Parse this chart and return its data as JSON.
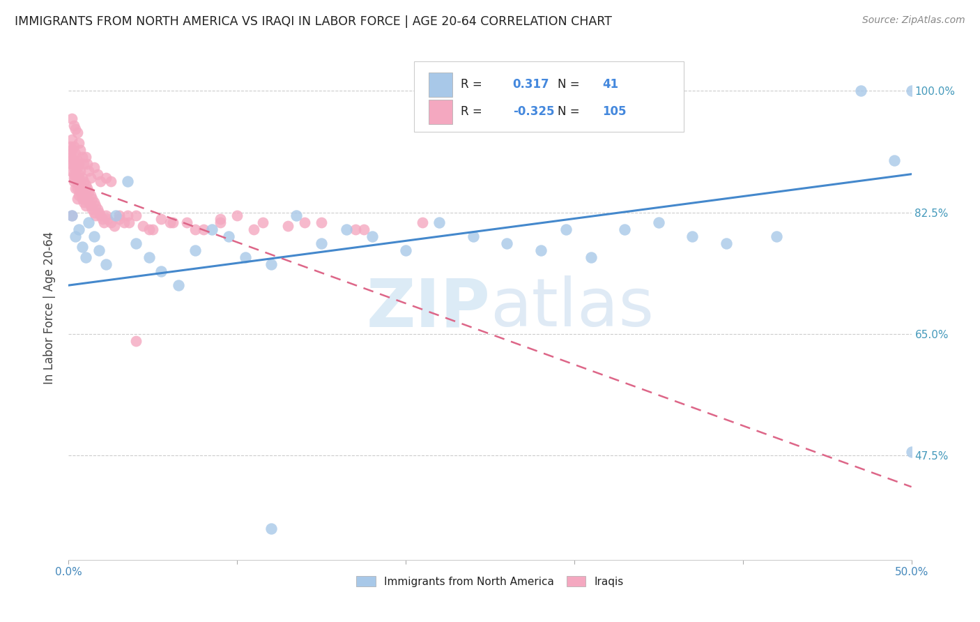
{
  "title": "IMMIGRANTS FROM NORTH AMERICA VS IRAQI IN LABOR FORCE | AGE 20-64 CORRELATION CHART",
  "source": "Source: ZipAtlas.com",
  "ylabel": "In Labor Force | Age 20-64",
  "xlim": [
    0.0,
    0.5
  ],
  "ylim": [
    0.325,
    1.05
  ],
  "xticks": [
    0.0,
    0.1,
    0.2,
    0.3,
    0.4,
    0.5
  ],
  "xticklabels_show": [
    "0.0%",
    "",
    "",
    "",
    "",
    "50.0%"
  ],
  "yticks": [
    0.475,
    0.65,
    0.825,
    1.0
  ],
  "yticklabels": [
    "47.5%",
    "65.0%",
    "82.5%",
    "100.0%"
  ],
  "R_blue": "0.317",
  "N_blue": "41",
  "R_pink": "-0.325",
  "N_pink": "105",
  "blue_color": "#a8c8e8",
  "pink_color": "#f4a8c0",
  "blue_line_color": "#4488cc",
  "pink_line_color": "#dd6688",
  "watermark_color": "#d0e8f8",
  "legend_label_blue": "Immigrants from North America",
  "legend_label_pink": "Iraqis",
  "blue_trend_x": [
    0.0,
    0.5
  ],
  "blue_trend_y": [
    0.72,
    0.88
  ],
  "pink_trend_x": [
    0.0,
    0.5
  ],
  "pink_trend_y": [
    0.87,
    0.43
  ],
  "blue_scatter_x": [
    0.002,
    0.004,
    0.006,
    0.008,
    0.01,
    0.012,
    0.015,
    0.018,
    0.022,
    0.028,
    0.035,
    0.04,
    0.048,
    0.055,
    0.065,
    0.075,
    0.085,
    0.095,
    0.105,
    0.12,
    0.135,
    0.15,
    0.165,
    0.18,
    0.2,
    0.22,
    0.24,
    0.26,
    0.28,
    0.295,
    0.31,
    0.33,
    0.35,
    0.37,
    0.39,
    0.42,
    0.47,
    0.49,
    0.5,
    0.5,
    0.12
  ],
  "blue_scatter_y": [
    0.82,
    0.79,
    0.8,
    0.775,
    0.76,
    0.81,
    0.79,
    0.77,
    0.75,
    0.82,
    0.87,
    0.78,
    0.76,
    0.74,
    0.72,
    0.77,
    0.8,
    0.79,
    0.76,
    0.75,
    0.82,
    0.78,
    0.8,
    0.79,
    0.77,
    0.81,
    0.79,
    0.78,
    0.77,
    0.8,
    0.76,
    0.8,
    0.81,
    0.79,
    0.78,
    0.79,
    1.0,
    0.9,
    1.0,
    0.48,
    0.37
  ],
  "pink_scatter_x": [
    0.001,
    0.001,
    0.001,
    0.001,
    0.002,
    0.002,
    0.002,
    0.002,
    0.003,
    0.003,
    0.003,
    0.003,
    0.003,
    0.004,
    0.004,
    0.004,
    0.004,
    0.005,
    0.005,
    0.005,
    0.005,
    0.005,
    0.006,
    0.006,
    0.006,
    0.006,
    0.007,
    0.007,
    0.007,
    0.008,
    0.008,
    0.008,
    0.009,
    0.009,
    0.009,
    0.01,
    0.01,
    0.01,
    0.011,
    0.011,
    0.012,
    0.012,
    0.013,
    0.013,
    0.014,
    0.014,
    0.015,
    0.015,
    0.016,
    0.016,
    0.017,
    0.018,
    0.019,
    0.02,
    0.021,
    0.022,
    0.023,
    0.025,
    0.027,
    0.03,
    0.033,
    0.036,
    0.04,
    0.044,
    0.048,
    0.055,
    0.062,
    0.07,
    0.08,
    0.09,
    0.1,
    0.115,
    0.13,
    0.15,
    0.17,
    0.002,
    0.003,
    0.004,
    0.005,
    0.006,
    0.007,
    0.008,
    0.009,
    0.01,
    0.011,
    0.012,
    0.013,
    0.015,
    0.017,
    0.019,
    0.022,
    0.025,
    0.03,
    0.035,
    0.04,
    0.05,
    0.06,
    0.075,
    0.09,
    0.11,
    0.14,
    0.175,
    0.21,
    0.002,
    0.003
  ],
  "pink_scatter_y": [
    0.9,
    0.92,
    0.91,
    0.885,
    0.905,
    0.895,
    0.93,
    0.915,
    0.9,
    0.89,
    0.88,
    0.92,
    0.87,
    0.91,
    0.895,
    0.88,
    0.86,
    0.9,
    0.89,
    0.875,
    0.86,
    0.845,
    0.895,
    0.88,
    0.865,
    0.85,
    0.885,
    0.87,
    0.855,
    0.875,
    0.86,
    0.845,
    0.87,
    0.855,
    0.84,
    0.865,
    0.85,
    0.835,
    0.86,
    0.845,
    0.855,
    0.84,
    0.85,
    0.835,
    0.845,
    0.83,
    0.84,
    0.825,
    0.835,
    0.82,
    0.83,
    0.825,
    0.82,
    0.815,
    0.81,
    0.82,
    0.815,
    0.81,
    0.805,
    0.815,
    0.81,
    0.81,
    0.82,
    0.805,
    0.8,
    0.815,
    0.81,
    0.81,
    0.8,
    0.815,
    0.82,
    0.81,
    0.805,
    0.81,
    0.8,
    0.96,
    0.95,
    0.945,
    0.94,
    0.925,
    0.915,
    0.905,
    0.895,
    0.905,
    0.895,
    0.885,
    0.875,
    0.89,
    0.88,
    0.87,
    0.875,
    0.87,
    0.82,
    0.82,
    0.64,
    0.8,
    0.81,
    0.8,
    0.81,
    0.8,
    0.81,
    0.8,
    0.81,
    0.82,
    0.875
  ]
}
